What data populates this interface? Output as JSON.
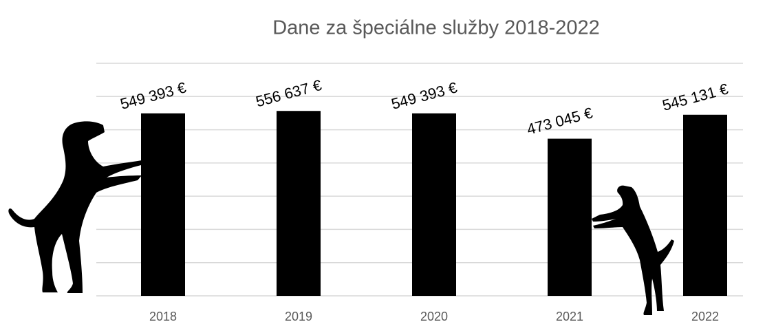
{
  "chart_data": {
    "type": "bar",
    "title": "Dane za špeciálne služby 2018-2022",
    "categories": [
      "2018",
      "2019",
      "2020",
      "2021",
      "2022"
    ],
    "values": [
      549393,
      556637,
      549393,
      473045,
      545131
    ],
    "value_labels": [
      "549 393 €",
      "556 637 €",
      "549 393 €",
      "473 045 €",
      "545 131 €"
    ],
    "color": "#000000",
    "ylim": [
      0,
      700000
    ],
    "yticks": [
      0,
      100000,
      200000,
      300000,
      400000,
      500000,
      600000,
      700000
    ],
    "grid": true
  }
}
